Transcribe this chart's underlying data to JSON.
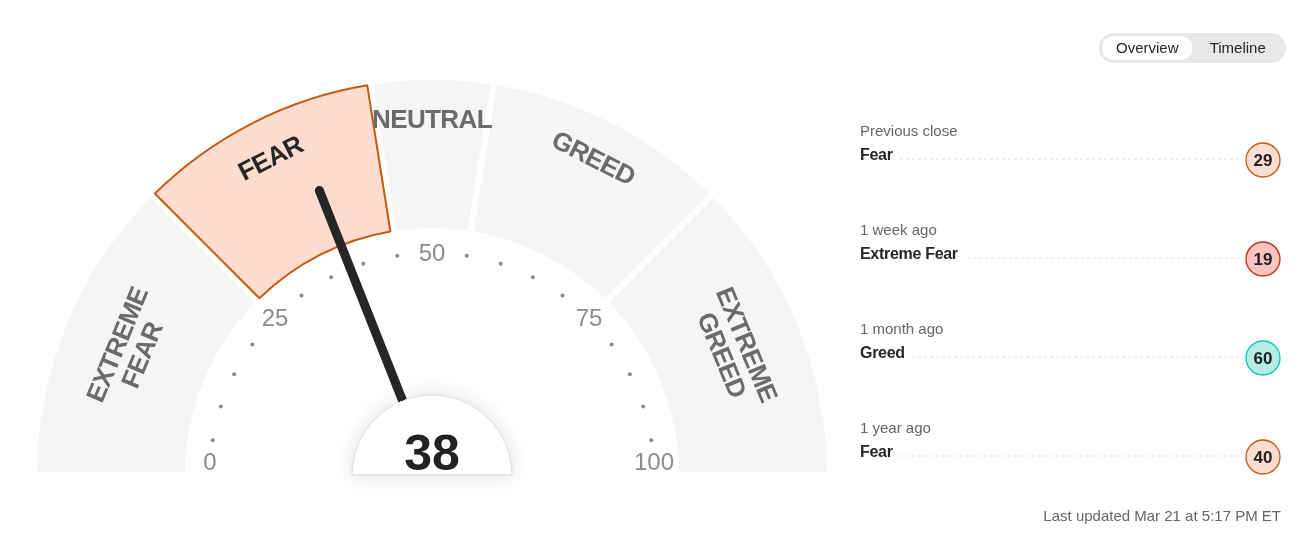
{
  "chart_data": [
    {
      "type": "donut",
      "categories": [
        "EXTREME FEAR",
        "FEAR",
        "NEUTRAL",
        "GREED",
        "EXTREME GREED"
      ],
      "values": [
        25,
        20,
        10,
        20,
        25
      ],
      "colors": [
        "#f5f5f5",
        "#fedccf",
        "#f5f5f5",
        "#f5f5f5",
        "#f5f5f5"
      ],
      "needle": "FEAR",
      "annotations": [
        "0",
        "25",
        "50",
        "75",
        "100",
        "38"
      ]
    },
    {
      "type": "other",
      "annotations": [
        "Overview",
        "Timeline"
      ]
    },
    {
      "type": "other",
      "categories": [
        "Previous close",
        "1 week ago",
        "1 month ago",
        "1 year ago"
      ],
      "values": [
        29,
        19,
        60,
        40
      ],
      "colors": [
        "#fedccf",
        "#fcc3c0",
        "#b7ece2",
        "#fedccf"
      ],
      "data_labels": true,
      "annotations": [
        {
          "text": "Fear",
          "x": "Previous close"
        },
        {
          "text": "Extreme Fear",
          "x": "1 week ago"
        },
        {
          "text": "Greed",
          "x": "1 month ago"
        },
        {
          "text": "Fear",
          "x": "1 year ago"
        },
        "Last updated Mar 21 at 5:17 PM ET"
      ]
    }
  ]
}
